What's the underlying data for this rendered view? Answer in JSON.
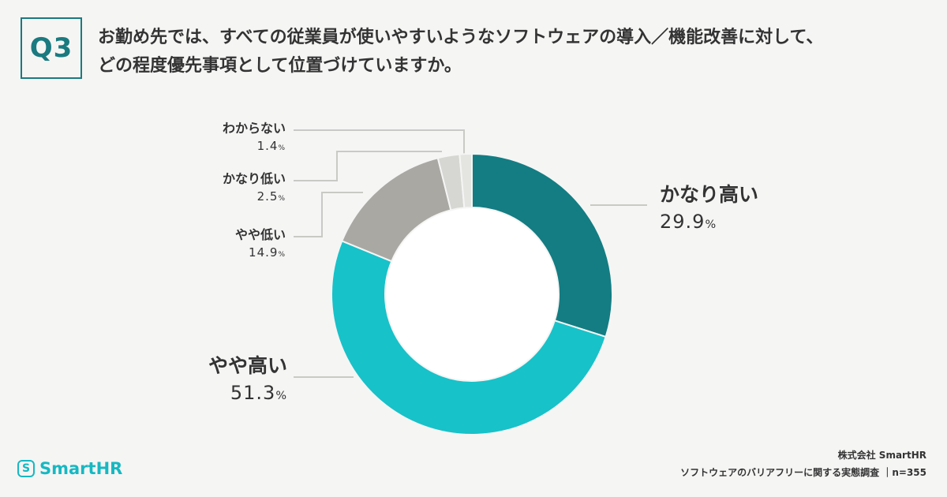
{
  "header": {
    "q_badge": "Q3",
    "question_line1": "お勤め先では、すべての従業員が使いやすいようなソフトウェアの導入／機能改善に対して、",
    "question_line2": "どの程度優先事項として位置づけていますか。"
  },
  "chart_data": {
    "type": "pie",
    "donut": true,
    "categories": [
      "かなり高い",
      "やや高い",
      "やや低い",
      "かなり低い",
      "わからない"
    ],
    "values": [
      29.9,
      51.3,
      14.9,
      2.5,
      1.4
    ],
    "unit": "%",
    "colors": [
      "#137d83",
      "#17c2c9",
      "#a9a8a3",
      "#d6d6d3",
      "#e4e4e1"
    ],
    "labels": {
      "very_high": {
        "name": "かなり高い",
        "value": "29.9"
      },
      "somewhat_high": {
        "name": "やや高い",
        "value": "51.3"
      },
      "somewhat_low": {
        "name": "やや低い",
        "value": "14.9"
      },
      "very_low": {
        "name": "かなり低い",
        "value": "2.5"
      },
      "unknown": {
        "name": "わからない",
        "value": "1.4"
      }
    },
    "percent_sign": "%"
  },
  "footer": {
    "company": "株式会社 SmartHR",
    "survey": "ソフトウェアのバリアフリーに関する実態調査 ｜n=355"
  },
  "logo": {
    "name": "SmartHR",
    "mark": "S"
  }
}
